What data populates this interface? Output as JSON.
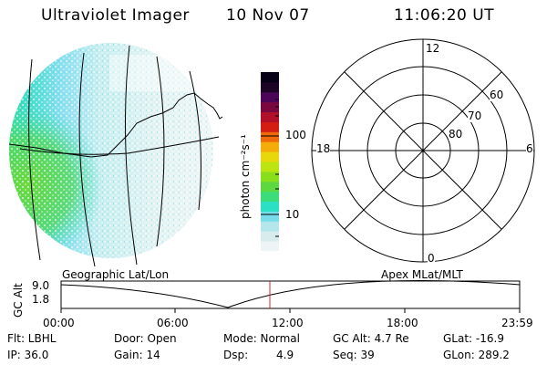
{
  "header": {
    "title": "Ultraviolet Imager",
    "date": "10 Nov 07",
    "time": "11:06:20 UT"
  },
  "colorbar": {
    "unit_label": "photon cm⁻²s⁻¹",
    "ticks": [
      "100",
      "10"
    ],
    "colors": [
      "#eef4f4",
      "#d8ecee",
      "#b4e6ec",
      "#78dcea",
      "#2ce0c6",
      "#3cdc7a",
      "#5ed840",
      "#8ade1c",
      "#bce412",
      "#e6d80a",
      "#f4ac0a",
      "#ee6a0a",
      "#d41e14",
      "#b0102a",
      "#7a0840",
      "#4c0658",
      "#1c0424",
      "#070116"
    ]
  },
  "polar_plot": {
    "mlt_labels": {
      "top": "12",
      "left": "18",
      "right": "6",
      "bottom": "0"
    },
    "mlat_labels": [
      "60",
      "70",
      "80"
    ]
  },
  "timeline": {
    "left_label": "Geographic Lat/Lon",
    "right_label": "Apex  MLat/MLT",
    "axis_label": "GC Alt",
    "y_ticks": [
      "9.0",
      "1.8"
    ],
    "x_ticks": [
      "00:00",
      "06:00",
      "12:00",
      "18:00",
      "23:59"
    ],
    "marker_color": "#e02020"
  },
  "status": {
    "flt": "Flt: LBHL",
    "ip": "IP: 36.0",
    "door": "Door: Open",
    "gain": "Gain: 14",
    "mode": "Mode: Normal",
    "dsp_label": "Dsp:",
    "dsp_value": "4.9",
    "gc_alt": "GC Alt: 4.7 Re",
    "seq": "Seq: 39",
    "glat": "GLat: -16.9",
    "glon": "GLon: 289.2"
  }
}
